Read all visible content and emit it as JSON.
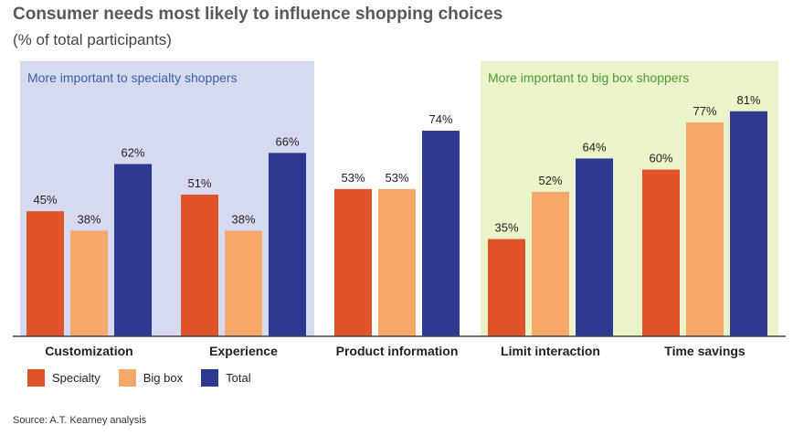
{
  "title": "Consumer needs most likely to influence shopping choices",
  "subtitle": "(% of total participants)",
  "source": "Source: A.T. Kearney analysis",
  "colors": {
    "specialty": "#e0522a",
    "big_box": "#f6a86a",
    "total": "#2b3990",
    "panel_specialty": "#d6daf0",
    "panel_bigbox": "#ebf3c8",
    "panel_specialty_text": "#3a5fa8",
    "panel_bigbox_text": "#4a9a3a"
  },
  "panels": [
    {
      "label": "More important to specialty shoppers",
      "group": "specialty"
    },
    {
      "label": "More important to big box shoppers",
      "group": "bigbox"
    }
  ],
  "legend": [
    {
      "label": "Specialty",
      "color": "#e0522a"
    },
    {
      "label": "Big box",
      "color": "#f6a86a"
    },
    {
      "label": "Total",
      "color": "#2b3990"
    }
  ],
  "chart_data": {
    "type": "bar",
    "title": "Consumer needs most likely to influence shopping choices",
    "subtitle": "(% of total participants)",
    "categories": [
      "Customization",
      "Experience",
      "Product information",
      "Limit interaction",
      "Time savings"
    ],
    "series": [
      {
        "name": "Specialty",
        "values": [
          45,
          51,
          53,
          35,
          60
        ],
        "labels": [
          "45%",
          "51%",
          "53%",
          "35%",
          "60%"
        ]
      },
      {
        "name": "Big box",
        "values": [
          38,
          38,
          53,
          52,
          77
        ],
        "labels": [
          "38%",
          "38%",
          "53%",
          "52%",
          "77%"
        ]
      },
      {
        "name": "Total",
        "values": [
          62,
          66,
          74,
          64,
          81
        ],
        "labels": [
          "62%",
          "66%",
          "74%",
          "64%",
          "81%"
        ]
      }
    ],
    "ylim": [
      0,
      100
    ],
    "grid": false,
    "legend": "bottom-left"
  }
}
